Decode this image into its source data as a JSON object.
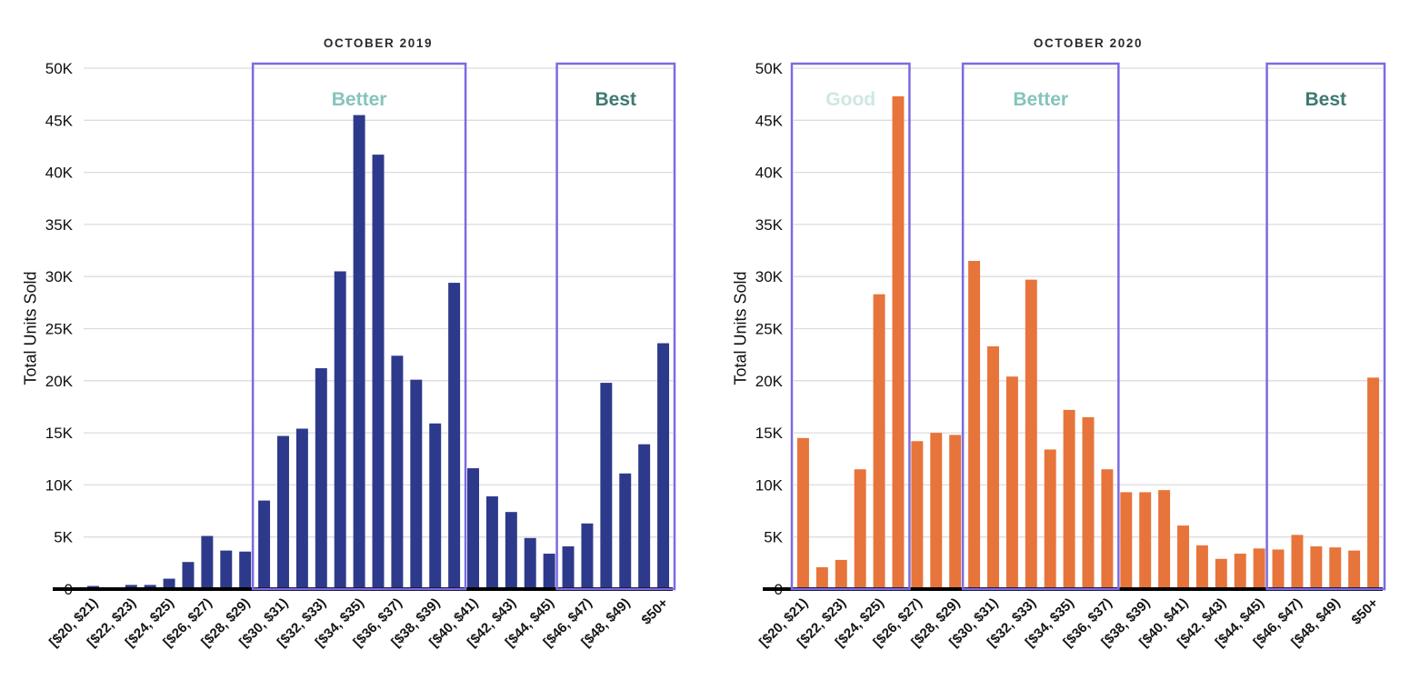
{
  "chart_data": [
    {
      "type": "bar",
      "title": "OCTOBER 2019",
      "ylabel": "Total Units Sold",
      "ylim": [
        0,
        50000
      ],
      "grid": true,
      "bar_color": "#2d3a8b",
      "y_tick_labels": [
        "0",
        "5K",
        "10K",
        "15K",
        "20K",
        "25K",
        "30K",
        "35K",
        "40K",
        "45K",
        "50K"
      ],
      "x_tick_labels": [
        "[$20, $21)",
        "[$22, $23)",
        "[$24, $25)",
        "[$26, $27)",
        "[$28, $29)",
        "[$30, $31)",
        "[$32, $33)",
        "[$34, $35)",
        "[$36, $37)",
        "[$38, $39)",
        "[$40, $41)",
        "[$42, $43)",
        "[$44, $45)",
        "[$46, $47)",
        "[$48, $49)",
        "$50+"
      ],
      "x_ticks_every_n_bins": 2,
      "values": [
        300,
        100,
        400,
        400,
        1000,
        2600,
        5100,
        3700,
        3600,
        8500,
        14700,
        15400,
        21200,
        30500,
        45500,
        41700,
        22400,
        20100,
        15900,
        29400,
        11600,
        8900,
        7400,
        4900,
        3400,
        4100,
        6300,
        19800,
        11100,
        13900,
        23600
      ],
      "annotations": [
        {
          "label": "Better",
          "from_bin": 9,
          "to_bin": 19,
          "box_color": "#7a6be0",
          "label_color": "#85c4bc"
        },
        {
          "label": "Best",
          "from_bin": 25,
          "to_bin": 30,
          "box_color": "#7a6be0",
          "label_color": "#3d7a72"
        }
      ]
    },
    {
      "type": "bar",
      "title": "OCTOBER 2020",
      "ylabel": "Total Units Sold",
      "ylim": [
        0,
        50000
      ],
      "grid": true,
      "bar_color": "#e7743b",
      "y_tick_labels": [
        "0",
        "5K",
        "10K",
        "15K",
        "20K",
        "25K",
        "30K",
        "35K",
        "40K",
        "45K",
        "50K"
      ],
      "x_tick_labels": [
        "[$20, $21)",
        "[$22, $23)",
        "[$24, $25)",
        "[$26, $27)",
        "[$28, $29)",
        "[$30, $31)",
        "[$32, $33)",
        "[$34, $35)",
        "[$36, $37)",
        "[$38, $39)",
        "[$40, $41)",
        "[$42, $43)",
        "[$44, $45)",
        "[$46, $47)",
        "[$48, $49)",
        "$50+"
      ],
      "x_ticks_every_n_bins": 2,
      "values": [
        14500,
        2100,
        2800,
        11500,
        28300,
        47300,
        14200,
        15000,
        14800,
        31500,
        23300,
        20400,
        29700,
        13400,
        17200,
        16500,
        11500,
        9300,
        9300,
        9500,
        6100,
        4200,
        2900,
        3400,
        3900,
        3800,
        5200,
        4100,
        4000,
        3700,
        20300
      ],
      "annotations": [
        {
          "label": "Good",
          "from_bin": 0,
          "to_bin": 5,
          "box_color": "#7a6be0",
          "label_color": "#cfe7e3"
        },
        {
          "label": "Better",
          "from_bin": 9,
          "to_bin": 16,
          "box_color": "#7a6be0",
          "label_color": "#85c4bc"
        },
        {
          "label": "Best",
          "from_bin": 25,
          "to_bin": 30,
          "box_color": "#7a6be0",
          "label_color": "#3d7a72"
        }
      ]
    }
  ]
}
